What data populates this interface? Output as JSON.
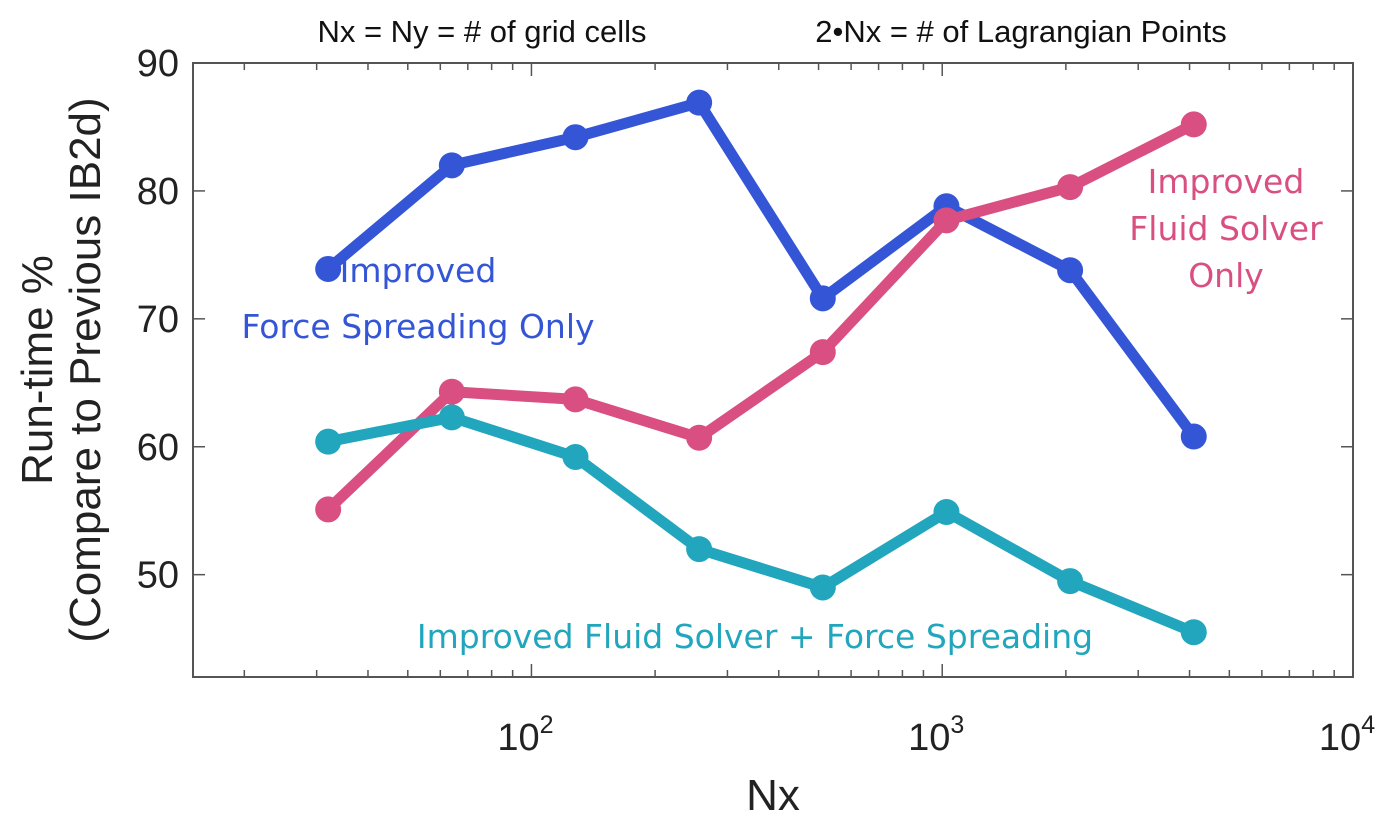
{
  "chart_data": {
    "type": "line",
    "title_left": "Nx = Ny = # of grid cells",
    "title_right": "2•Nx = # of Lagrangian Points",
    "xlabel": "Nx",
    "ylabel_line1": "Run-time %",
    "ylabel_line2": "(Compare to Previous IB2d)",
    "xscale": "log",
    "xlim": [
      15,
      10000
    ],
    "ylim": [
      42,
      90
    ],
    "grid": false,
    "legend": "none (inline annotations)",
    "x": [
      32,
      64,
      128,
      256,
      512,
      1024,
      2048,
      4096
    ],
    "xticks": [
      {
        "value": 100,
        "base": "10",
        "exp": "2"
      },
      {
        "value": 1000,
        "base": "10",
        "exp": "3"
      },
      {
        "value": 10000,
        "base": "10",
        "exp": "4"
      }
    ],
    "yticks": [
      {
        "value": 50,
        "label": "50"
      },
      {
        "value": 60,
        "label": "60"
      },
      {
        "value": 70,
        "label": "70"
      },
      {
        "value": 80,
        "label": "80"
      },
      {
        "value": 90,
        "label": "90"
      }
    ],
    "series": [
      {
        "name": "Improved Force Spreading Only",
        "color": "#3456d6",
        "values": [
          73.9,
          82.0,
          84.2,
          86.9,
          71.6,
          78.8,
          73.8,
          60.8
        ],
        "annotation_lines": [
          "Improved",
          "Force Spreading Only"
        ]
      },
      {
        "name": "Improved Fluid Solver Only",
        "color": "#d94f82",
        "values": [
          55.1,
          64.3,
          63.7,
          60.7,
          67.4,
          77.7,
          80.3,
          85.2
        ],
        "annotation_lines": [
          "Improved",
          "Fluid Solver",
          "Only"
        ]
      },
      {
        "name": "Improved Fluid Solver + Force Spreading",
        "color": "#21a6bd",
        "values": [
          60.4,
          62.3,
          59.2,
          52.0,
          49.0,
          54.9,
          49.5,
          45.5
        ],
        "annotation_lines": [
          "Improved Fluid Solver + Force Spreading"
        ]
      }
    ]
  }
}
